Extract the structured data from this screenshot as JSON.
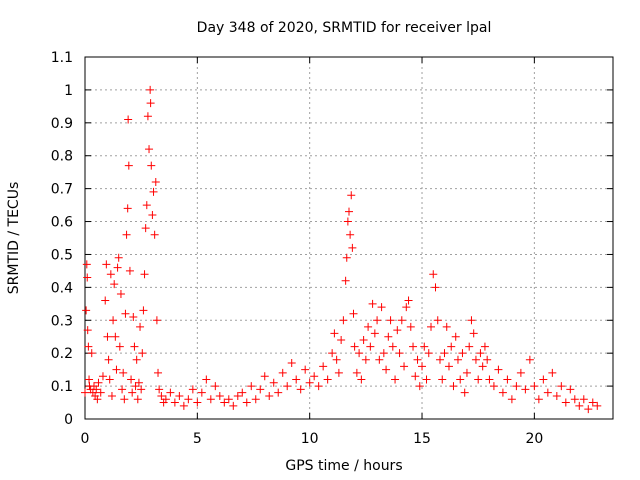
{
  "chart_data": {
    "type": "scatter",
    "title": "Day 348 of 2020, SRMTID for receiver lpal",
    "xlabel": "GPS time / hours",
    "ylabel": "SRMTID / TECUs",
    "xlim": [
      0,
      23.5
    ],
    "ylim": [
      0,
      1.1
    ],
    "xticks": [
      0,
      5,
      10,
      15,
      20
    ],
    "xtick_labels": [
      "0",
      "5",
      "10",
      "15",
      "20"
    ],
    "yticks": [
      0,
      0.1,
      0.2,
      0.3,
      0.4,
      0.5,
      0.6,
      0.7,
      0.8,
      0.9,
      1,
      1.1
    ],
    "ytick_labels": [
      "0",
      "0.1",
      "0.2",
      "0.3",
      "0.4",
      "0.5",
      "0.6",
      "0.7",
      "0.8",
      "0.9",
      "1",
      "1.1"
    ],
    "grid": true,
    "marker": "+",
    "series": [
      {
        "name": "SRMTID",
        "color": "#ff0000",
        "points": [
          [
            0.0,
            0.08
          ],
          [
            0.05,
            0.33
          ],
          [
            0.08,
            0.47
          ],
          [
            0.1,
            0.43
          ],
          [
            0.12,
            0.27
          ],
          [
            0.15,
            0.22
          ],
          [
            0.18,
            0.12
          ],
          [
            0.2,
            0.1
          ],
          [
            0.25,
            0.09
          ],
          [
            0.3,
            0.2
          ],
          [
            0.35,
            0.08
          ],
          [
            0.4,
            0.1
          ],
          [
            0.45,
            0.07
          ],
          [
            0.5,
            0.09
          ],
          [
            0.55,
            0.06
          ],
          [
            0.6,
            0.11
          ],
          [
            0.7,
            0.08
          ],
          [
            0.8,
            0.13
          ],
          [
            0.9,
            0.36
          ],
          [
            0.95,
            0.47
          ],
          [
            1.0,
            0.25
          ],
          [
            1.05,
            0.18
          ],
          [
            1.1,
            0.12
          ],
          [
            1.15,
            0.44
          ],
          [
            1.2,
            0.07
          ],
          [
            1.25,
            0.3
          ],
          [
            1.3,
            0.41
          ],
          [
            1.35,
            0.25
          ],
          [
            1.4,
            0.15
          ],
          [
            1.45,
            0.46
          ],
          [
            1.5,
            0.49
          ],
          [
            1.55,
            0.22
          ],
          [
            1.6,
            0.38
          ],
          [
            1.65,
            0.09
          ],
          [
            1.7,
            0.14
          ],
          [
            1.75,
            0.06
          ],
          [
            1.8,
            0.32
          ],
          [
            1.85,
            0.56
          ],
          [
            1.9,
            0.64
          ],
          [
            1.92,
            0.91
          ],
          [
            1.95,
            0.77
          ],
          [
            2.0,
            0.45
          ],
          [
            2.05,
            0.12
          ],
          [
            2.1,
            0.08
          ],
          [
            2.15,
            0.31
          ],
          [
            2.2,
            0.22
          ],
          [
            2.25,
            0.1
          ],
          [
            2.3,
            0.18
          ],
          [
            2.35,
            0.06
          ],
          [
            2.4,
            0.11
          ],
          [
            2.45,
            0.28
          ],
          [
            2.5,
            0.09
          ],
          [
            2.55,
            0.2
          ],
          [
            2.6,
            0.33
          ],
          [
            2.65,
            0.44
          ],
          [
            2.7,
            0.58
          ],
          [
            2.75,
            0.65
          ],
          [
            2.8,
            0.92
          ],
          [
            2.85,
            0.82
          ],
          [
            2.9,
            1.0
          ],
          [
            2.92,
            0.96
          ],
          [
            2.95,
            0.77
          ],
          [
            3.0,
            0.62
          ],
          [
            3.05,
            0.69
          ],
          [
            3.1,
            0.56
          ],
          [
            3.15,
            0.72
          ],
          [
            3.2,
            0.3
          ],
          [
            3.25,
            0.14
          ],
          [
            3.3,
            0.09
          ],
          [
            3.4,
            0.07
          ],
          [
            3.5,
            0.05
          ],
          [
            3.6,
            0.06
          ],
          [
            3.8,
            0.08
          ],
          [
            4.0,
            0.05
          ],
          [
            4.2,
            0.07
          ],
          [
            4.4,
            0.04
          ],
          [
            4.6,
            0.06
          ],
          [
            4.8,
            0.09
          ],
          [
            5.0,
            0.05
          ],
          [
            5.2,
            0.08
          ],
          [
            5.4,
            0.12
          ],
          [
            5.6,
            0.06
          ],
          [
            5.8,
            0.1
          ],
          [
            6.0,
            0.07
          ],
          [
            6.2,
            0.05
          ],
          [
            6.4,
            0.06
          ],
          [
            6.6,
            0.04
          ],
          [
            6.8,
            0.07
          ],
          [
            7.0,
            0.08
          ],
          [
            7.2,
            0.05
          ],
          [
            7.4,
            0.1
          ],
          [
            7.6,
            0.06
          ],
          [
            7.8,
            0.09
          ],
          [
            8.0,
            0.13
          ],
          [
            8.2,
            0.07
          ],
          [
            8.4,
            0.11
          ],
          [
            8.6,
            0.08
          ],
          [
            8.8,
            0.14
          ],
          [
            9.0,
            0.1
          ],
          [
            9.2,
            0.17
          ],
          [
            9.4,
            0.12
          ],
          [
            9.6,
            0.09
          ],
          [
            9.8,
            0.15
          ],
          [
            10.0,
            0.11
          ],
          [
            10.2,
            0.13
          ],
          [
            10.4,
            0.1
          ],
          [
            10.6,
            0.16
          ],
          [
            10.8,
            0.12
          ],
          [
            11.0,
            0.2
          ],
          [
            11.1,
            0.26
          ],
          [
            11.2,
            0.18
          ],
          [
            11.3,
            0.14
          ],
          [
            11.4,
            0.24
          ],
          [
            11.5,
            0.3
          ],
          [
            11.6,
            0.42
          ],
          [
            11.65,
            0.49
          ],
          [
            11.7,
            0.6
          ],
          [
            11.75,
            0.63
          ],
          [
            11.8,
            0.56
          ],
          [
            11.85,
            0.68
          ],
          [
            11.9,
            0.52
          ],
          [
            11.95,
            0.32
          ],
          [
            12.0,
            0.22
          ],
          [
            12.1,
            0.14
          ],
          [
            12.2,
            0.2
          ],
          [
            12.3,
            0.12
          ],
          [
            12.4,
            0.24
          ],
          [
            12.5,
            0.18
          ],
          [
            12.6,
            0.28
          ],
          [
            12.7,
            0.22
          ],
          [
            12.8,
            0.35
          ],
          [
            12.9,
            0.26
          ],
          [
            13.0,
            0.3
          ],
          [
            13.1,
            0.18
          ],
          [
            13.2,
            0.34
          ],
          [
            13.3,
            0.2
          ],
          [
            13.4,
            0.15
          ],
          [
            13.5,
            0.25
          ],
          [
            13.6,
            0.3
          ],
          [
            13.7,
            0.22
          ],
          [
            13.8,
            0.12
          ],
          [
            13.9,
            0.27
          ],
          [
            14.0,
            0.2
          ],
          [
            14.1,
            0.3
          ],
          [
            14.2,
            0.16
          ],
          [
            14.3,
            0.34
          ],
          [
            14.4,
            0.36
          ],
          [
            14.5,
            0.28
          ],
          [
            14.6,
            0.22
          ],
          [
            14.7,
            0.13
          ],
          [
            14.8,
            0.18
          ],
          [
            14.9,
            0.1
          ],
          [
            15.0,
            0.16
          ],
          [
            15.1,
            0.22
          ],
          [
            15.2,
            0.12
          ],
          [
            15.3,
            0.2
          ],
          [
            15.4,
            0.28
          ],
          [
            15.5,
            0.44
          ],
          [
            15.6,
            0.4
          ],
          [
            15.7,
            0.3
          ],
          [
            15.8,
            0.18
          ],
          [
            15.9,
            0.12
          ],
          [
            16.0,
            0.2
          ],
          [
            16.1,
            0.28
          ],
          [
            16.2,
            0.16
          ],
          [
            16.3,
            0.22
          ],
          [
            16.4,
            0.1
          ],
          [
            16.5,
            0.25
          ],
          [
            16.6,
            0.18
          ],
          [
            16.7,
            0.12
          ],
          [
            16.8,
            0.2
          ],
          [
            16.9,
            0.08
          ],
          [
            17.0,
            0.14
          ],
          [
            17.1,
            0.22
          ],
          [
            17.2,
            0.3
          ],
          [
            17.3,
            0.26
          ],
          [
            17.4,
            0.18
          ],
          [
            17.5,
            0.12
          ],
          [
            17.6,
            0.2
          ],
          [
            17.7,
            0.16
          ],
          [
            17.8,
            0.22
          ],
          [
            17.9,
            0.18
          ],
          [
            18.0,
            0.12
          ],
          [
            18.2,
            0.1
          ],
          [
            18.4,
            0.15
          ],
          [
            18.6,
            0.08
          ],
          [
            18.8,
            0.12
          ],
          [
            19.0,
            0.06
          ],
          [
            19.2,
            0.1
          ],
          [
            19.4,
            0.14
          ],
          [
            19.6,
            0.09
          ],
          [
            19.8,
            0.18
          ],
          [
            20.0,
            0.1
          ],
          [
            20.2,
            0.06
          ],
          [
            20.4,
            0.12
          ],
          [
            20.6,
            0.08
          ],
          [
            20.8,
            0.14
          ],
          [
            21.0,
            0.07
          ],
          [
            21.2,
            0.1
          ],
          [
            21.4,
            0.05
          ],
          [
            21.6,
            0.09
          ],
          [
            21.8,
            0.06
          ],
          [
            22.0,
            0.04
          ],
          [
            22.2,
            0.06
          ],
          [
            22.4,
            0.03
          ],
          [
            22.6,
            0.05
          ],
          [
            22.8,
            0.04
          ]
        ]
      }
    ]
  }
}
